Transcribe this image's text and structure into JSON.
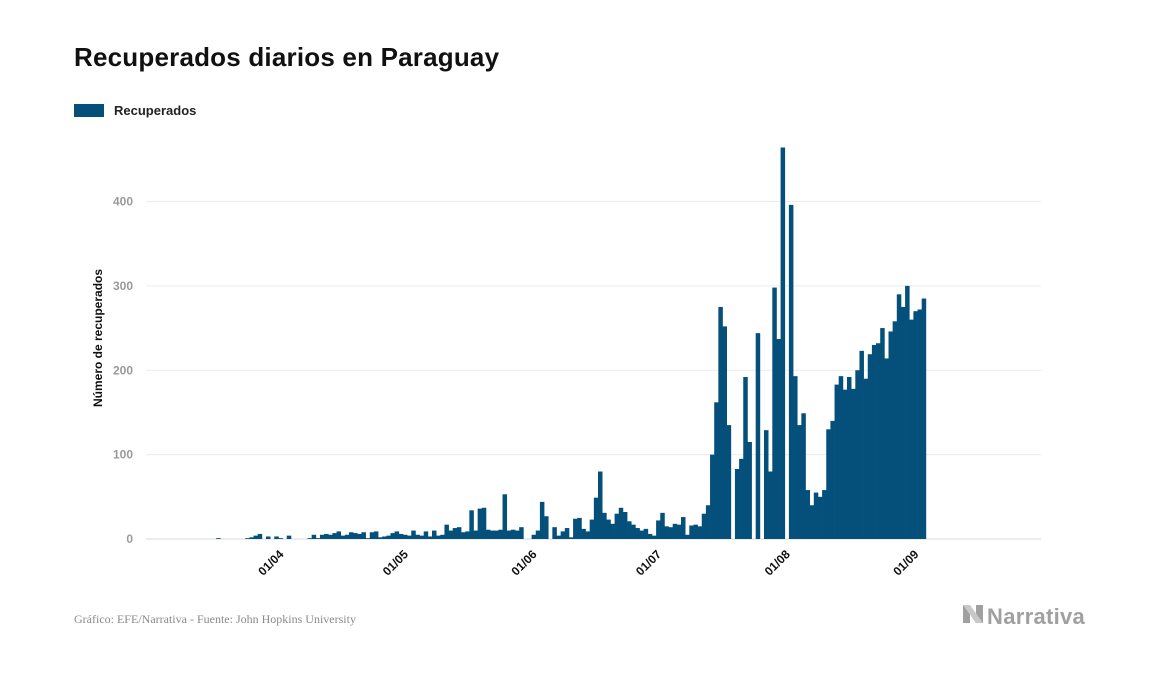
{
  "title": "Recuperados diarios en Paraguay",
  "legend": {
    "label": "Recuperados",
    "color": "#04507a"
  },
  "source": "Gráfico: EFE/Narrativa - Fuente: John Hopkins University",
  "brand": "Narrativa",
  "chart_data": {
    "type": "bar",
    "title": "Recuperados diarios en Paraguay",
    "ylabel": "Número de recuperados",
    "xlabel": "",
    "ylim": [
      0,
      480
    ],
    "yticks": [
      0,
      100,
      200,
      300,
      400
    ],
    "grid": true,
    "legend_position": "top-left",
    "bar_color": "#04507a",
    "x_start": "2020-03-10",
    "xtick_labels": [
      {
        "date": "2020-04-01",
        "label": "01/04"
      },
      {
        "date": "2020-05-01",
        "label": "01/05"
      },
      {
        "date": "2020-06-01",
        "label": "01/06"
      },
      {
        "date": "2020-07-01",
        "label": "01/07"
      },
      {
        "date": "2020-08-01",
        "label": "01/08"
      },
      {
        "date": "2020-09-01",
        "label": "01/09"
      }
    ],
    "series": [
      {
        "name": "Recuperados",
        "values": [
          0,
          0,
          0,
          0,
          0,
          0,
          0,
          0,
          1,
          0,
          0,
          0,
          0,
          0,
          0,
          1,
          2,
          4,
          6,
          0,
          3,
          0,
          3,
          1,
          0,
          4,
          0,
          0,
          0,
          0,
          1,
          5,
          1,
          5,
          6,
          5,
          7,
          9,
          4,
          5,
          8,
          7,
          6,
          8,
          1,
          8,
          9,
          2,
          3,
          4,
          7,
          9,
          6,
          5,
          4,
          10,
          5,
          4,
          9,
          3,
          10,
          4,
          5,
          17,
          10,
          13,
          14,
          8,
          9,
          34,
          10,
          36,
          37,
          11,
          10,
          10,
          11,
          53,
          10,
          11,
          10,
          14,
          0,
          0,
          5,
          10,
          44,
          27,
          0,
          14,
          4,
          9,
          13,
          2,
          24,
          25,
          12,
          9,
          23,
          49,
          80,
          31,
          23,
          18,
          30,
          37,
          32,
          21,
          17,
          13,
          10,
          12,
          6,
          4,
          22,
          31,
          15,
          14,
          18,
          17,
          26,
          5,
          16,
          17,
          15,
          30,
          40,
          100,
          162,
          275,
          252,
          135,
          0,
          83,
          95,
          192,
          115,
          0,
          244,
          0,
          129,
          80,
          298,
          237,
          464,
          0,
          396,
          193,
          135,
          149,
          58,
          40,
          55,
          50,
          58,
          130,
          140,
          183,
          193,
          177,
          192,
          178,
          200,
          223,
          190,
          219,
          230,
          232,
          250,
          214,
          246,
          258,
          290,
          275,
          300,
          260,
          270,
          272,
          285
        ]
      }
    ]
  }
}
